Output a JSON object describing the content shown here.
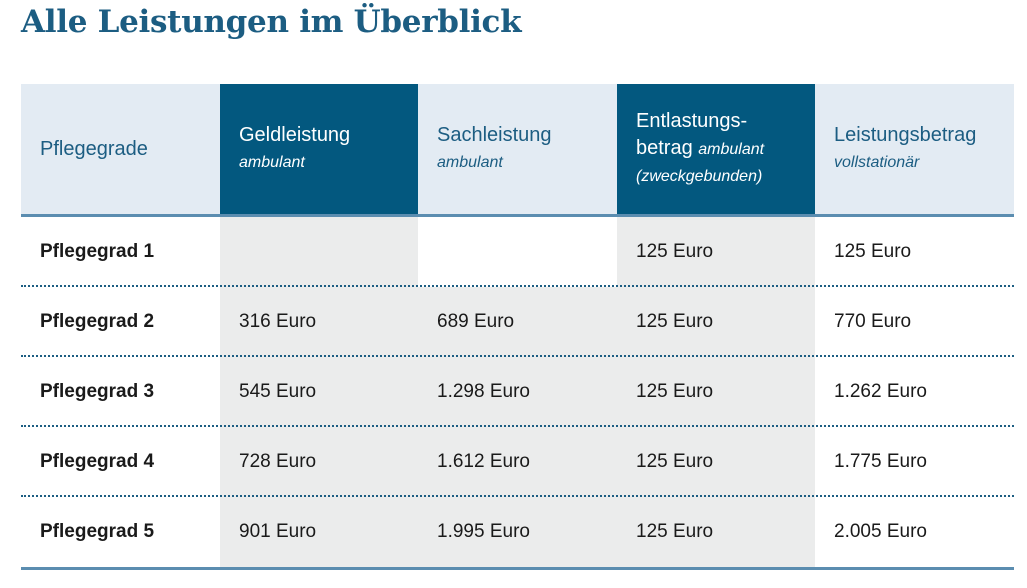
{
  "title": "Alle Leistungen im Überblick",
  "table": {
    "headers": {
      "pflegegrade": "Pflegegrade",
      "geld_main": "Geldleistung",
      "geld_sub": "ambulant",
      "sach_main": "Sachleistung",
      "sach_sub": "ambulant",
      "entl_line1": "Entlastungs-",
      "entl_line2": "betrag",
      "entl_line2_sub": "ambulant",
      "entl_line3": "(zweckgebunden)",
      "leist_main": "Leistungsbetrag",
      "leist_sub": "vollstationär"
    },
    "rows": [
      {
        "label": "Pflegegrad 1",
        "geld": "",
        "sach": "",
        "entl": "125 Euro",
        "leist": "125 Euro"
      },
      {
        "label": "Pflegegrad 2",
        "geld": "316 Euro",
        "sach": "689 Euro",
        "entl": "125 Euro",
        "leist": "770 Euro"
      },
      {
        "label": "Pflegegrad 3",
        "geld": "545 Euro",
        "sach": "1.298 Euro",
        "entl": "125 Euro",
        "leist": "1.262 Euro"
      },
      {
        "label": "Pflegegrad 4",
        "geld": "728 Euro",
        "sach": "1.612 Euro",
        "entl": "125 Euro",
        "leist": "1.775 Euro"
      },
      {
        "label": "Pflegegrad 5",
        "geld": "901 Euro",
        "sach": "1.995 Euro",
        "entl": "125 Euro",
        "leist": "2.005 Euro"
      }
    ]
  },
  "colors": {
    "title": "#1c5d82",
    "header_dark": "#03587f",
    "header_light": "#e3ebf3",
    "shade": "#ebecec",
    "rule": "#5b8db0"
  }
}
